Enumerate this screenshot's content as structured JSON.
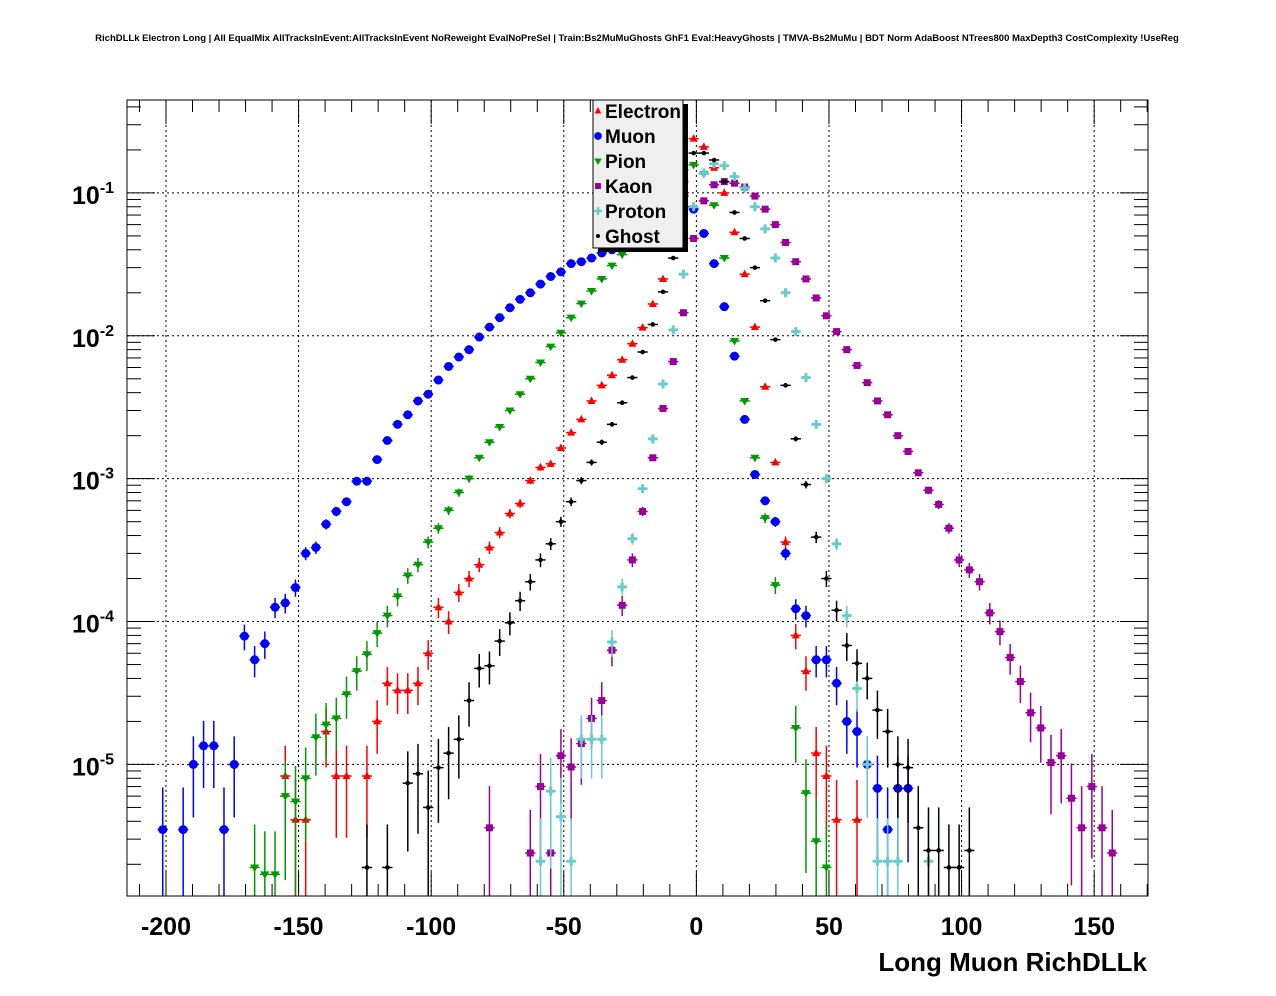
{
  "chart_data": {
    "type": "scatter",
    "title": "RichDLLk Electron Long | All EqualMix AllTracksInEvent:AllTracksInEvent NoReweight EvalNoPreSel | Train:Bs2MuMuGhosts GhF1 Eval:HeavyGhosts | TMVA-Bs2MuMu | BDT Norm AdaBoost NTrees800 MaxDepth3 CostComplexity !UseReg",
    "xlabel": "Long Muon RichDLLk",
    "ylabel": "",
    "xlim": [
      -214.7,
      170.3
    ],
    "ylim": [
      1.2e-06,
      0.447
    ],
    "yscale": "log",
    "grid": true,
    "legend_position": "top-center",
    "bins": {
      "min": -214.7,
      "width": 3.85,
      "count": 100
    },
    "x_ticks": [
      {
        "value": -200,
        "label": "-200"
      },
      {
        "value": -150,
        "label": "-150"
      },
      {
        "value": -100,
        "label": "-100"
      },
      {
        "value": -50,
        "label": "-50"
      },
      {
        "value": 0,
        "label": "0"
      },
      {
        "value": 50,
        "label": "50"
      },
      {
        "value": 100,
        "label": "100"
      },
      {
        "value": 150,
        "label": "150"
      }
    ],
    "y_ticks": [
      {
        "value": 0.1,
        "base": "10",
        "exp": "-1"
      },
      {
        "value": 0.01,
        "base": "10",
        "exp": "-2"
      },
      {
        "value": 0.001,
        "base": "10",
        "exp": "-3"
      },
      {
        "value": 0.0001,
        "base": "10",
        "exp": "-4"
      },
      {
        "value": 1e-05,
        "base": "10",
        "exp": "-5"
      }
    ],
    "series": [
      {
        "name": "Electron",
        "color": "#ff0000",
        "marker": "triangle-up",
        "start_bin": 15,
        "values": [
          8.3e-06,
          4.1e-06,
          4.1e-06,
          null,
          1.7e-05,
          8.3e-06,
          8.3e-06,
          null,
          8.3e-06,
          2e-05,
          3.7e-05,
          3.3e-05,
          3.3e-05,
          3.7e-05,
          6e-05,
          0.000126,
          0.0001,
          0.00016,
          0.0002,
          0.00025,
          0.00033,
          0.00042,
          0.00057,
          0.00067,
          0.00097,
          0.0012,
          0.00127,
          0.00164,
          0.0021,
          0.0026,
          0.0035,
          0.0045,
          0.0053,
          0.0068,
          0.0088,
          0.0114,
          0.0167,
          0.025,
          0.06,
          0.12,
          0.24,
          0.21,
          0.15,
          0.1,
          0.053,
          0.027,
          0.0115,
          0.0044,
          0.0013,
          0.00036,
          8e-05,
          4.5e-05,
          1.2e-05,
          8.3e-06,
          4.1e-06,
          null,
          4.1e-06
        ]
      },
      {
        "name": "Muon",
        "color": "#0000ff",
        "marker": "circle",
        "start_bin": 3,
        "values": [
          3.5e-06,
          null,
          3.5e-06,
          1e-05,
          1.35e-05,
          1.35e-05,
          3.5e-06,
          1e-05,
          7.9e-05,
          5.4e-05,
          7e-05,
          0.000126,
          0.000135,
          0.000173,
          0.0003,
          0.00033,
          0.00048,
          0.00059,
          0.00069,
          0.00096,
          0.00096,
          0.00136,
          0.00185,
          0.0024,
          0.0028,
          0.0035,
          0.0039,
          0.0049,
          0.0061,
          0.0071,
          0.008,
          0.0098,
          0.0115,
          0.0134,
          0.0157,
          0.018,
          0.02,
          0.023,
          0.026,
          0.028,
          0.032,
          0.033,
          0.035,
          0.038,
          0.04,
          0.044,
          0.05,
          0.056,
          0.063,
          0.072,
          0.082,
          0.095,
          0.077,
          0.052,
          0.032,
          0.016,
          0.0072,
          0.0026,
          0.00107,
          0.0007,
          0.0005,
          0.0003,
          0.000123,
          0.00011,
          5.4e-05,
          5.4e-05,
          3.7e-05,
          2e-05,
          1.7e-05,
          1e-05,
          6.8e-06,
          3.5e-06,
          6.8e-06,
          6.8e-06
        ]
      },
      {
        "name": "Pion",
        "color": "#009900",
        "marker": "triangle-down",
        "start_bin": 12,
        "values": [
          1.9e-06,
          1.7e-06,
          1.7e-06,
          6e-06,
          5.5e-06,
          8e-06,
          1.55e-05,
          1.9e-05,
          2.1e-05,
          3.1e-05,
          4.5e-05,
          5.9e-05,
          8.3e-05,
          0.00011,
          0.00015,
          0.00021,
          0.00025,
          0.00036,
          0.00045,
          0.0006,
          0.0008,
          0.001,
          0.0014,
          0.0018,
          0.0023,
          0.003,
          0.0039,
          0.005,
          0.0065,
          0.0084,
          0.0105,
          0.0134,
          0.0168,
          0.0206,
          0.025,
          0.031,
          0.037,
          0.045,
          0.055,
          0.07,
          0.09,
          0.12,
          0.145,
          0.157,
          0.136,
          0.082,
          0.035,
          0.0092,
          0.0035,
          0.0014,
          0.00053,
          0.00018,
          null,
          1.8e-05,
          6.3e-06,
          2.9e-06,
          1.9e-06
        ]
      },
      {
        "name": "Kaon",
        "color": "#990099",
        "marker": "square",
        "start_bin": 35,
        "values": [
          3.6e-06,
          null,
          null,
          null,
          2.4e-06,
          7e-06,
          2.4e-06,
          1.15e-05,
          9.6e-06,
          1.4e-05,
          2.1e-05,
          2.8e-05,
          6.3e-05,
          0.00013,
          0.00027,
          0.00059,
          0.0014,
          0.0031,
          0.0066,
          0.0145,
          0.048,
          0.088,
          0.114,
          0.12,
          0.117,
          0.11,
          0.095,
          0.077,
          0.06,
          0.045,
          0.033,
          0.025,
          0.0184,
          0.0138,
          0.0107,
          0.008,
          0.0062,
          0.0047,
          0.0035,
          0.0028,
          0.002,
          0.00155,
          0.0011,
          0.00083,
          0.00066,
          0.00045,
          0.00027,
          0.00023,
          0.00019,
          0.000115,
          8.5e-05,
          5.6e-05,
          3.8e-05,
          2.3e-05,
          1.8e-05,
          1.03e-05,
          1.15e-05,
          5.8e-06,
          3.6e-06,
          7e-06,
          3.6e-06,
          2.4e-06
        ]
      },
      {
        "name": "Proton",
        "color": "#66cccc",
        "marker": "cross",
        "start_bin": 40,
        "values": [
          2.1e-06,
          6.5e-06,
          4.3e-06,
          2.1e-06,
          1.5e-05,
          1.5e-05,
          1.5e-05,
          7.2e-05,
          0.000175,
          0.00038,
          0.00085,
          0.0019,
          0.0046,
          0.011,
          0.027,
          0.08,
          0.138,
          0.16,
          0.155,
          0.13,
          0.108,
          0.08,
          0.056,
          0.035,
          0.02,
          0.0107,
          0.0051,
          0.0024,
          0.001,
          0.00035,
          0.00011,
          3.4e-05,
          1e-05,
          2.1e-06,
          2.1e-06,
          2.1e-06,
          null,
          null,
          2.1e-06
        ]
      },
      {
        "name": "Ghost",
        "color": "#000000",
        "marker": "dot",
        "start_bin": 23,
        "values": [
          1.9e-06,
          null,
          1.9e-06,
          null,
          7.4e-06,
          8.6e-06,
          5e-06,
          9.5e-06,
          1.2e-05,
          1.5e-05,
          2.8e-05,
          4.7e-05,
          4.9e-05,
          7.3e-05,
          9.8e-05,
          0.00014,
          0.00019,
          0.00027,
          0.00035,
          0.0005,
          0.00069,
          0.00097,
          0.0013,
          0.0018,
          0.0024,
          0.0034,
          0.0051,
          0.0077,
          0.012,
          0.0203,
          0.035,
          0.08,
          0.19,
          0.19,
          0.17,
          0.12,
          0.073,
          0.048,
          0.03,
          0.0176,
          0.0094,
          0.0045,
          0.0019,
          0.00091,
          0.00039,
          0.0002,
          0.00012,
          6.8e-05,
          5.1e-05,
          4e-05,
          2.4e-05,
          1.7e-05,
          1e-05,
          9.5e-06,
          3.6e-06,
          2.5e-06,
          2.5e-06,
          1.9e-06,
          1.9e-06,
          2.5e-06
        ]
      }
    ]
  }
}
